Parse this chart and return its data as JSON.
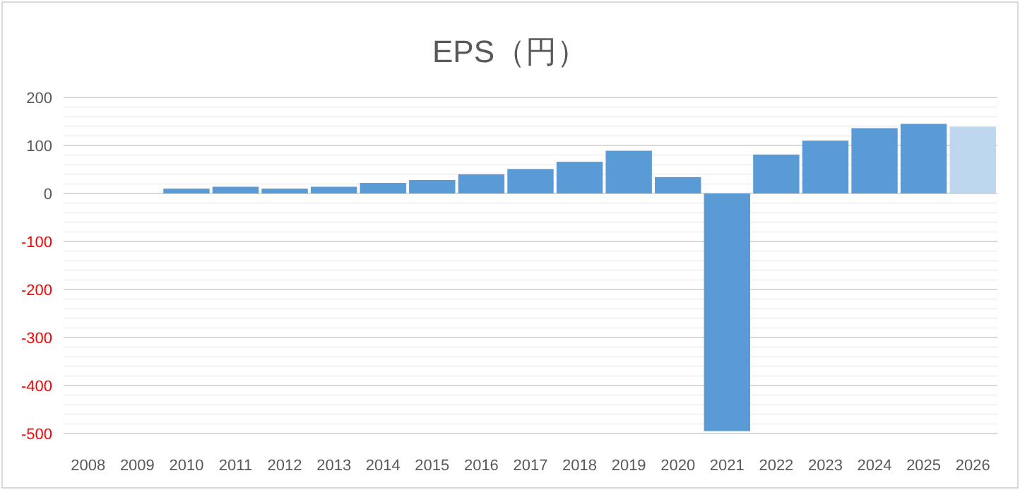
{
  "chart_data": {
    "type": "bar",
    "title": "EPS（円）",
    "categories": [
      "2008",
      "2009",
      "2010",
      "2011",
      "2012",
      "2013",
      "2014",
      "2015",
      "2016",
      "2017",
      "2018",
      "2019",
      "2020",
      "2021",
      "2022",
      "2023",
      "2024",
      "2025",
      "2026"
    ],
    "values": [
      null,
      null,
      10,
      14,
      10,
      14,
      22,
      28,
      40,
      51,
      66,
      89,
      34,
      -495,
      81,
      110,
      136,
      145,
      139
    ],
    "colors": [
      null,
      null,
      "#5b9bd5",
      "#5b9bd5",
      "#5b9bd5",
      "#5b9bd5",
      "#5b9bd5",
      "#5b9bd5",
      "#5b9bd5",
      "#5b9bd5",
      "#5b9bd5",
      "#5b9bd5",
      "#5b9bd5",
      "#5b9bd5",
      "#5b9bd5",
      "#5b9bd5",
      "#5b9bd5",
      "#5b9bd5",
      "#bdd7ee"
    ],
    "ylim": [
      -500,
      200
    ],
    "yticks": [
      200,
      100,
      0,
      -100,
      -200,
      -300,
      -400,
      -500
    ],
    "grid": "y"
  }
}
